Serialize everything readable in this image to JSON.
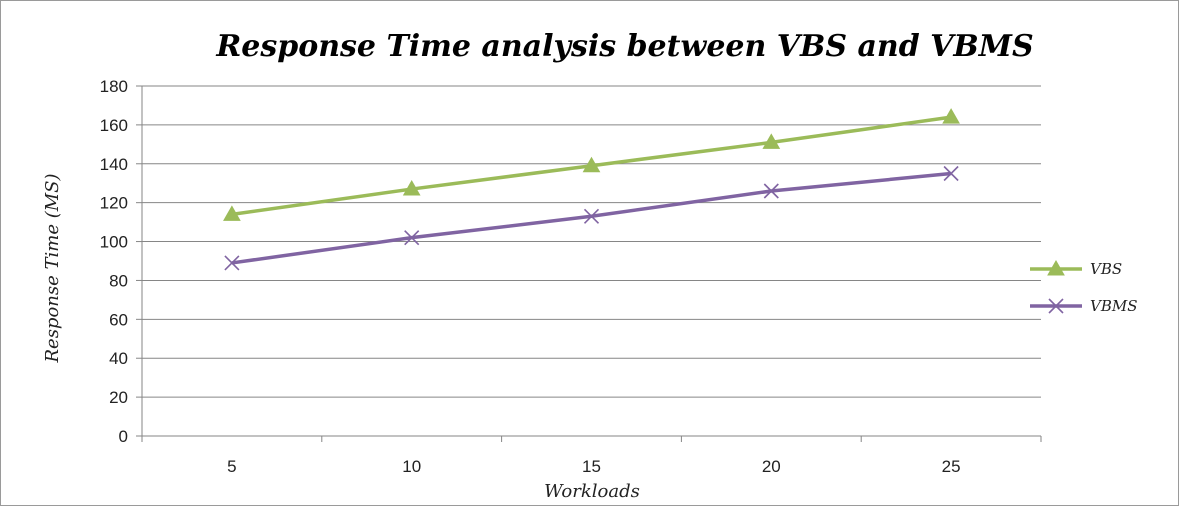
{
  "chart_data": {
    "type": "line",
    "title": "Response Time analysis between  VBS and VBMS",
    "xlabel": "Workloads",
    "ylabel": "Response Time (MS)",
    "categories": [
      "5",
      "10",
      "15",
      "20",
      "25"
    ],
    "ylim": [
      0,
      180
    ],
    "yticks": [
      0,
      20,
      40,
      60,
      80,
      100,
      120,
      140,
      160,
      180
    ],
    "grid": true,
    "legend_position": "right",
    "series": [
      {
        "name": "VBS",
        "values": [
          114,
          127,
          139,
          151,
          164
        ],
        "color": "#9bbb59",
        "marker": "triangle"
      },
      {
        "name": "VBMS",
        "values": [
          89,
          102,
          113,
          126,
          135
        ],
        "color": "#8064a2",
        "marker": "x"
      }
    ]
  }
}
